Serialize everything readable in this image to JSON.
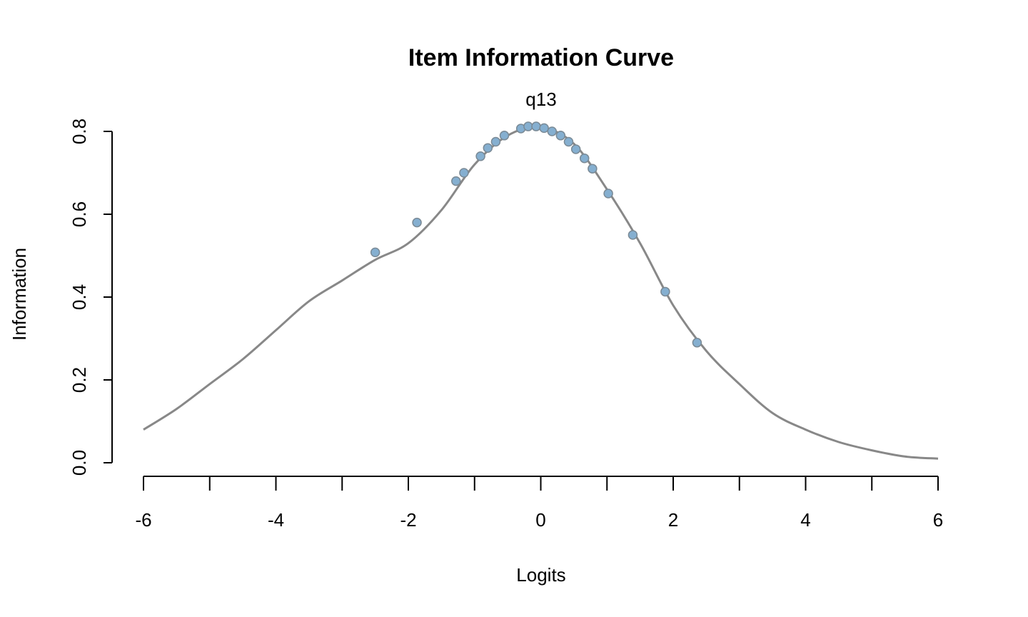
{
  "chart_data": {
    "type": "line",
    "title": "Item Information Curve",
    "subtitle": "q13",
    "xlabel": "Logits",
    "ylabel": "Information",
    "xlim": [
      -6,
      6
    ],
    "ylim": [
      0,
      0.8
    ],
    "x_ticks": [
      -6,
      -5,
      -4,
      -3,
      -2,
      -1,
      0,
      1,
      2,
      3,
      4,
      5,
      6
    ],
    "x_tick_labels": [
      "-6",
      "-4",
      "-2",
      "0",
      "2",
      "4",
      "6"
    ],
    "x_tick_label_values": [
      -6,
      -4,
      -2,
      0,
      2,
      4,
      6
    ],
    "y_ticks": [
      0.0,
      0.2,
      0.4,
      0.6,
      0.8
    ],
    "y_tick_labels": [
      "0.0",
      "0.2",
      "0.4",
      "0.6",
      "0.8"
    ],
    "grid": false,
    "colors": {
      "line": "#888888",
      "points": "#85AFD0"
    },
    "series": [
      {
        "x": [
          -6,
          -5.5,
          -5,
          -4.5,
          -4,
          -3.5,
          -3,
          -2.5,
          -2,
          -1.5,
          -1,
          -0.5,
          0,
          0.5,
          1,
          1.5,
          2,
          2.5,
          3,
          3.5,
          4,
          4.5,
          5,
          5.5,
          6
        ],
        "values": [
          0.08,
          0.13,
          0.19,
          0.25,
          0.32,
          0.39,
          0.44,
          0.49,
          0.53,
          0.61,
          0.72,
          0.79,
          0.81,
          0.77,
          0.66,
          0.53,
          0.38,
          0.27,
          0.19,
          0.12,
          0.08,
          0.05,
          0.03,
          0.015,
          0.01
        ]
      }
    ],
    "points": {
      "x": [
        -2.5,
        -1.87,
        -1.28,
        -1.16,
        -0.91,
        -0.8,
        -0.68,
        -0.55,
        -0.3,
        -0.19,
        -0.07,
        0.05,
        0.17,
        0.3,
        0.42,
        0.53,
        0.66,
        0.78,
        1.02,
        1.39,
        1.88,
        2.36
      ],
      "y": [
        0.508,
        0.58,
        0.68,
        0.7,
        0.74,
        0.76,
        0.775,
        0.79,
        0.807,
        0.812,
        0.812,
        0.808,
        0.8,
        0.79,
        0.775,
        0.757,
        0.735,
        0.71,
        0.65,
        0.55,
        0.413,
        0.29
      ]
    }
  }
}
